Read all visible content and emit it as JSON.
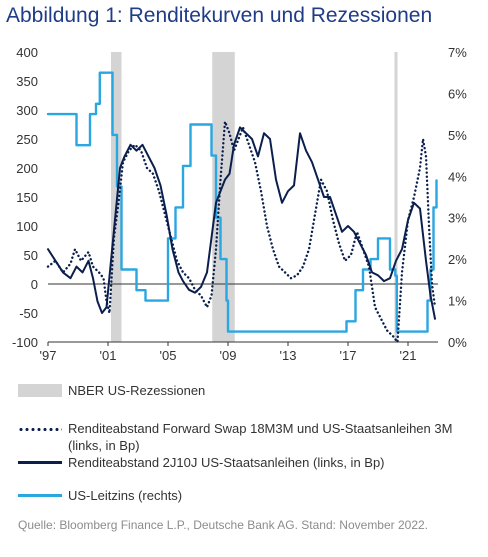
{
  "title": "Abbildung 1: Renditekurven und Rezessionen",
  "source": "Quelle: Bloomberg Finance L.P., Deutsche Bank AG. Stand: November 2022.",
  "chart_data": {
    "type": "line",
    "x_ticks": [
      "'97",
      "'01",
      "'05",
      "'09",
      "'13",
      "'17",
      "'21"
    ],
    "x_tick_years": [
      1997,
      2001,
      2005,
      2009,
      2013,
      2017,
      2021
    ],
    "xlim": [
      1997,
      2023.0
    ],
    "y_left_ticks": [
      "400",
      "350",
      "300",
      "250",
      "200",
      "150",
      "100",
      "50",
      "0",
      "-50",
      "-100"
    ],
    "ylim_left": [
      -100,
      400
    ],
    "y_right_ticks": [
      "7%",
      "6%",
      "5%",
      "4%",
      "3%",
      "2%",
      "1%",
      "0%"
    ],
    "ylim_right": [
      0,
      7
    ],
    "recessions": [
      [
        2001.2,
        2001.9
      ],
      [
        2007.95,
        2009.45
      ],
      [
        2020.1,
        2020.3
      ]
    ],
    "legend": [
      "NBER US-Rezessionen",
      "Renditeabstand Forward Swap 18M3M und US-Staatsanleihen 3M (links, in Bp)",
      "Renditeabstand 2J10J US-Staatsanleihen (links, in Bp)",
      "US-Leitzins (rechts)"
    ],
    "colors": {
      "recession": "#d4d4d4",
      "forward": "#0b1f4d",
      "spread": "#0b1f4d",
      "rate": "#2aa6e0"
    },
    "series": [
      {
        "name": "Renditeabstand Forward Swap 18M3M und US-Staatsanleihen 3M (links, in Bp)",
        "axis": "left",
        "style": "dotted",
        "x": [
          1997.0,
          1997.5,
          1998.0,
          1998.5,
          1998.8,
          1999.2,
          1999.7,
          2000.0,
          2000.4,
          2000.7,
          2000.9,
          2001.1,
          2001.4,
          2001.7,
          2002.0,
          2002.4,
          2002.8,
          2003.2,
          2003.6,
          2004.0,
          2004.4,
          2004.8,
          2005.2,
          2005.6,
          2006.0,
          2006.4,
          2006.8,
          2007.2,
          2007.6,
          2007.9,
          2008.2,
          2008.5,
          2008.8,
          2009.1,
          2009.4,
          2009.7,
          2010.0,
          2010.4,
          2010.8,
          2011.2,
          2011.6,
          2012.0,
          2012.4,
          2012.8,
          2013.2,
          2013.6,
          2014.0,
          2014.4,
          2014.8,
          2015.2,
          2015.6,
          2016.0,
          2016.4,
          2016.8,
          2017.2,
          2017.6,
          2018.0,
          2018.4,
          2018.8,
          2019.2,
          2019.6,
          2020.0,
          2020.3,
          2020.6,
          2021.0,
          2021.4,
          2021.8,
          2022.0,
          2022.2,
          2022.4,
          2022.6,
          2022.8
        ],
        "values": [
          30,
          40,
          20,
          35,
          60,
          40,
          55,
          30,
          20,
          10,
          -30,
          -50,
          80,
          140,
          210,
          230,
          240,
          230,
          200,
          190,
          160,
          120,
          80,
          40,
          20,
          10,
          -10,
          -20,
          -40,
          -20,
          60,
          180,
          280,
          260,
          230,
          250,
          270,
          240,
          210,
          160,
          100,
          60,
          30,
          20,
          10,
          15,
          30,
          60,
          120,
          180,
          160,
          110,
          70,
          40,
          50,
          90,
          60,
          30,
          -40,
          -60,
          -80,
          -90,
          -100,
          20,
          110,
          150,
          200,
          250,
          220,
          100,
          0,
          -40
        ]
      },
      {
        "name": "Renditeabstand 2J10J US-Staatsanleihen (links, in Bp)",
        "axis": "left",
        "style": "solid",
        "x": [
          1997.0,
          1997.5,
          1998.0,
          1998.5,
          1998.9,
          1999.3,
          1999.7,
          2000.0,
          2000.3,
          2000.6,
          2000.9,
          2001.2,
          2001.5,
          2001.8,
          2002.1,
          2002.5,
          2002.9,
          2003.3,
          2003.7,
          2004.1,
          2004.5,
          2004.9,
          2005.3,
          2005.7,
          2006.0,
          2006.4,
          2006.8,
          2007.2,
          2007.6,
          2007.9,
          2008.2,
          2008.5,
          2008.8,
          2009.1,
          2009.4,
          2009.8,
          2010.2,
          2010.6,
          2011.0,
          2011.4,
          2011.8,
          2012.2,
          2012.6,
          2013.0,
          2013.4,
          2013.8,
          2014.2,
          2014.6,
          2015.0,
          2015.4,
          2015.8,
          2016.2,
          2016.6,
          2017.0,
          2017.4,
          2017.8,
          2018.2,
          2018.6,
          2019.0,
          2019.4,
          2019.8,
          2020.2,
          2020.6,
          2021.0,
          2021.4,
          2021.8,
          2022.2,
          2022.5,
          2022.8
        ],
        "values": [
          60,
          40,
          20,
          10,
          30,
          20,
          40,
          10,
          -30,
          -50,
          -40,
          40,
          120,
          200,
          220,
          240,
          230,
          240,
          220,
          200,
          170,
          120,
          60,
          20,
          5,
          -10,
          -15,
          -5,
          20,
          80,
          140,
          160,
          180,
          190,
          240,
          270,
          260,
          250,
          220,
          260,
          250,
          180,
          140,
          160,
          170,
          260,
          230,
          210,
          180,
          150,
          150,
          120,
          90,
          100,
          90,
          70,
          50,
          20,
          15,
          5,
          10,
          40,
          60,
          110,
          140,
          130,
          40,
          -20,
          -60
        ]
      },
      {
        "name": "US-Leitzins (rechts)",
        "axis": "right",
        "style": "solid",
        "x": [
          1997.0,
          1998.7,
          1998.9,
          1999.4,
          1999.8,
          2000.2,
          2000.45,
          2001.0,
          2001.3,
          2001.6,
          2001.9,
          2002.9,
          2003.5,
          2004.5,
          2005.0,
          2005.5,
          2006.0,
          2006.5,
          2007.6,
          2007.9,
          2008.2,
          2008.5,
          2008.9,
          2009.0,
          2015.9,
          2016.9,
          2017.5,
          2018.0,
          2018.5,
          2019.0,
          2019.5,
          2019.8,
          2020.15,
          2020.25,
          2022.1,
          2022.3,
          2022.5,
          2022.7,
          2022.9
        ],
        "values": [
          5.5,
          5.5,
          4.75,
          4.75,
          5.5,
          5.75,
          6.5,
          6.5,
          5.0,
          3.75,
          1.75,
          1.25,
          1.0,
          1.0,
          2.5,
          3.25,
          4.25,
          5.25,
          5.25,
          4.5,
          3.0,
          2.0,
          1.0,
          0.25,
          0.25,
          0.5,
          1.25,
          1.75,
          2.0,
          2.5,
          2.5,
          1.75,
          1.6,
          0.25,
          0.25,
          1.0,
          1.75,
          3.25,
          3.9
        ]
      }
    ]
  }
}
